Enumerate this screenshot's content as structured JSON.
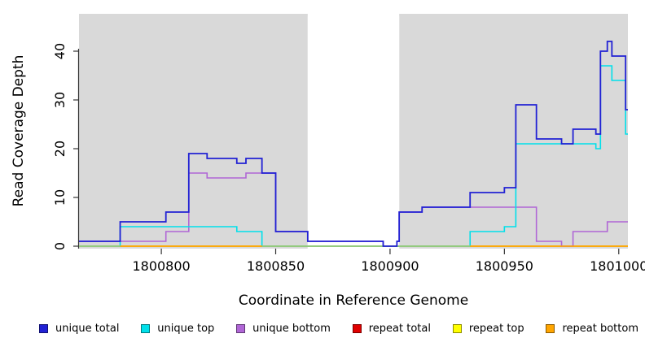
{
  "chart_data": {
    "type": "line",
    "subtype": "step",
    "title": "",
    "xlabel": "Coordinate in Reference Genome",
    "ylabel": "Read Coverage Depth",
    "xlim": [
      1800764,
      1801004
    ],
    "ylim": [
      0,
      47
    ],
    "x_end": 1801004,
    "xticks": [
      1800800,
      1800850,
      1800900,
      1800950,
      1801000
    ],
    "yticks": [
      0,
      10,
      20,
      30,
      40
    ],
    "grid": false,
    "legend_position": "bottom",
    "plot_background": "#d9d9d9",
    "background_bands": [
      {
        "x0": 1800764,
        "x1": 1800864,
        "color": "#d9d9d9"
      },
      {
        "x0": 1800904,
        "x1": 1801004,
        "color": "#d9d9d9"
      }
    ],
    "masked_region": {
      "x0": 1800864,
      "x1": 1800904,
      "color": "#ffffff"
    },
    "zero_overlap_color": "#86cf90",
    "series": [
      {
        "name": "unique total",
        "color": "#2121d4",
        "steps": [
          [
            1800764,
            1
          ],
          [
            1800782,
            5
          ],
          [
            1800802,
            7
          ],
          [
            1800812,
            19
          ],
          [
            1800820,
            18
          ],
          [
            1800833,
            17
          ],
          [
            1800837,
            18
          ],
          [
            1800844,
            15
          ],
          [
            1800850,
            3
          ],
          [
            1800864,
            1
          ],
          [
            1800897,
            0
          ],
          [
            1800903,
            1
          ],
          [
            1800904,
            7
          ],
          [
            1800914,
            8
          ],
          [
            1800935,
            11
          ],
          [
            1800950,
            12
          ],
          [
            1800955,
            29
          ],
          [
            1800964,
            22
          ],
          [
            1800975,
            21
          ],
          [
            1800980,
            24
          ],
          [
            1800990,
            23
          ],
          [
            1800992,
            40
          ],
          [
            1800995,
            42
          ],
          [
            1800997,
            39
          ],
          [
            1801003,
            28
          ]
        ]
      },
      {
        "name": "unique top",
        "color": "#00e0ea",
        "steps": [
          [
            1800764,
            0
          ],
          [
            1800782,
            4
          ],
          [
            1800833,
            3
          ],
          [
            1800844,
            0
          ],
          [
            1800935,
            3
          ],
          [
            1800950,
            4
          ],
          [
            1800955,
            21
          ],
          [
            1800990,
            20
          ],
          [
            1800992,
            37
          ],
          [
            1800997,
            34
          ],
          [
            1801003,
            23
          ]
        ]
      },
      {
        "name": "unique bottom",
        "color": "#b066d6",
        "steps": [
          [
            1800764,
            1
          ],
          [
            1800802,
            3
          ],
          [
            1800812,
            15
          ],
          [
            1800820,
            14
          ],
          [
            1800837,
            15
          ],
          [
            1800850,
            3
          ],
          [
            1800864,
            1
          ],
          [
            1800897,
            0
          ],
          [
            1800903,
            1
          ],
          [
            1800904,
            7
          ],
          [
            1800914,
            8
          ],
          [
            1800964,
            1
          ],
          [
            1800975,
            0
          ],
          [
            1800980,
            3
          ],
          [
            1800995,
            5
          ]
        ]
      },
      {
        "name": "repeat total",
        "color": "#e00000",
        "steps": [
          [
            1800764,
            0
          ]
        ]
      },
      {
        "name": "repeat top",
        "color": "#ffff00",
        "steps": [
          [
            1800764,
            0
          ]
        ]
      },
      {
        "name": "repeat bottom",
        "color": "#ffa500",
        "steps": [
          [
            1800764,
            0
          ]
        ]
      }
    ]
  }
}
